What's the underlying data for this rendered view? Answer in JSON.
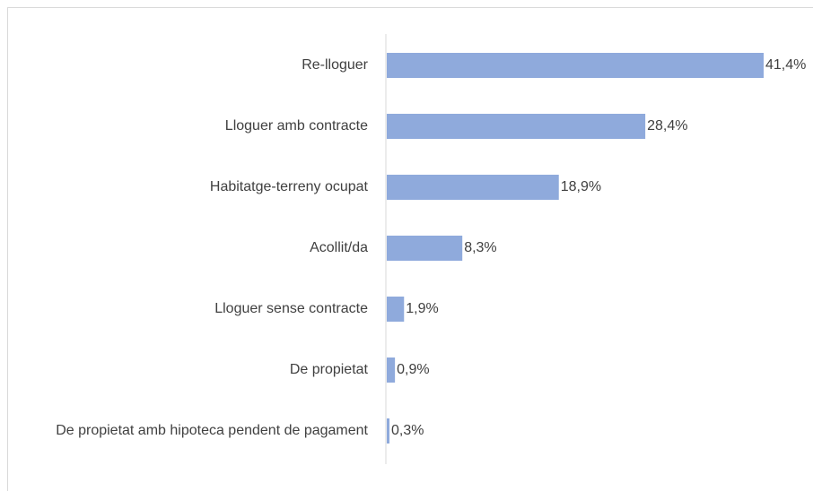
{
  "chart_data": {
    "type": "bar",
    "orientation": "horizontal",
    "categories": [
      "Re-lloguer",
      "Lloguer amb contracte",
      "Habitatge-terreny ocupat",
      "Acollit/da",
      "Lloguer sense contracte",
      "De propietat",
      "De propietat amb hipoteca pendent de pagament"
    ],
    "values": [
      41.4,
      28.4,
      18.9,
      8.3,
      1.9,
      0.9,
      0.3
    ],
    "value_labels": [
      "41,4%",
      "28,4%",
      "18,9%",
      "8,3%",
      "1,9%",
      "0,9%",
      "0,3%"
    ],
    "color": "#8faadc"
  }
}
